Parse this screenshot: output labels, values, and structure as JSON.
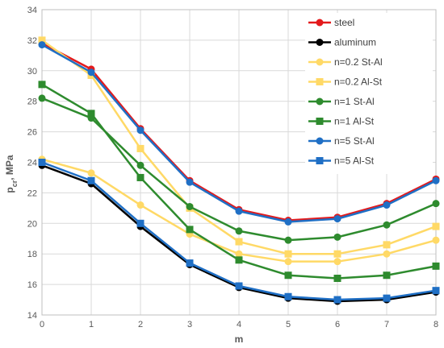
{
  "chart_data": {
    "type": "line",
    "xlabel": "m",
    "ylabel": "p",
    "ylabel_sub": "cr",
    "ylabel_suffix": ", MPa",
    "x": [
      0,
      1,
      2,
      3,
      4,
      5,
      6,
      7,
      8
    ],
    "xlim": [
      0,
      8
    ],
    "ylim": [
      14,
      34
    ],
    "yticks": [
      14,
      16,
      18,
      20,
      22,
      24,
      26,
      28,
      30,
      32,
      34
    ],
    "grid": true,
    "legend_position": "top-right",
    "series": [
      {
        "name": "steel",
        "color": "#e31a1c",
        "marker": "circle",
        "values": [
          31.8,
          30.1,
          26.2,
          22.8,
          20.9,
          20.2,
          20.4,
          21.3,
          22.9
        ]
      },
      {
        "name": "aluminum",
        "color": "#000000",
        "marker": "circle",
        "values": [
          23.8,
          22.6,
          19.8,
          17.3,
          15.8,
          15.1,
          14.9,
          15.0,
          15.5
        ]
      },
      {
        "name": "n=0.2 St-Al",
        "color": "#ffd966",
        "marker": "circle",
        "values": [
          24.2,
          23.3,
          21.2,
          19.3,
          18.0,
          17.5,
          17.5,
          18.0,
          18.9
        ]
      },
      {
        "name": "n=0.2 Al-St",
        "color": "#ffd966",
        "marker": "square",
        "values": [
          32.0,
          29.7,
          24.9,
          21.0,
          18.8,
          18.0,
          18.0,
          18.6,
          19.8
        ]
      },
      {
        "name": "n=1 St-Al",
        "color": "#2e8b2e",
        "marker": "circle",
        "values": [
          28.2,
          26.9,
          23.8,
          21.1,
          19.5,
          18.9,
          19.1,
          19.9,
          21.3
        ]
      },
      {
        "name": "n=1 Al-St",
        "color": "#2e8b2e",
        "marker": "square",
        "values": [
          29.1,
          27.2,
          23.0,
          19.6,
          17.6,
          16.6,
          16.4,
          16.6,
          17.2
        ]
      },
      {
        "name": "n=5 St-Al",
        "color": "#1f6fc5",
        "marker": "circle",
        "values": [
          31.7,
          29.9,
          26.1,
          22.7,
          20.8,
          20.1,
          20.3,
          21.2,
          22.8
        ]
      },
      {
        "name": "n=5  Al-St",
        "color": "#1f6fc5",
        "marker": "square",
        "values": [
          24.0,
          22.8,
          20.0,
          17.4,
          15.9,
          15.2,
          15.0,
          15.1,
          15.6
        ]
      }
    ]
  }
}
